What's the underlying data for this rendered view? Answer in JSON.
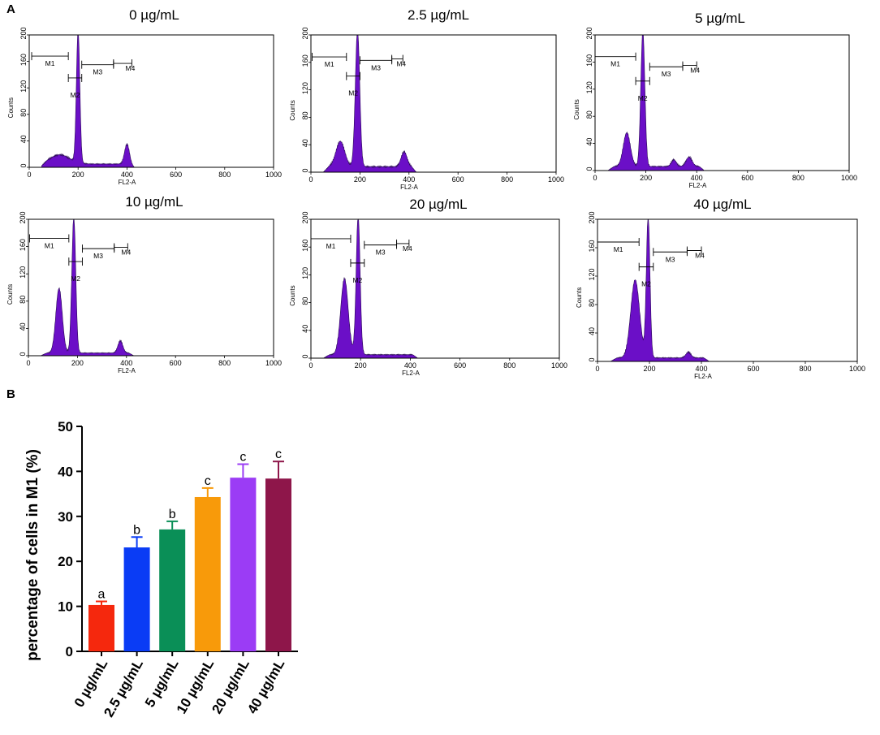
{
  "panel_a_label": "A",
  "panel_b_label": "B",
  "chart_data": [
    {
      "type": "area",
      "name": "histogram-0",
      "title": "0 µg/mL",
      "xlabel": "FL2-A",
      "ylabel": "Counts",
      "xlim": [
        0,
        1000
      ],
      "ylim": [
        0,
        200
      ],
      "x_ticks": [
        "0",
        "200",
        "400",
        "600",
        "800",
        "1000"
      ],
      "y_ticks": [
        "0",
        "40",
        "80",
        "120",
        "160",
        "200"
      ],
      "gates": [
        {
          "label": "M1",
          "x1": 10,
          "x2": 160,
          "y": 168
        },
        {
          "label": "M2",
          "x1": 160,
          "x2": 215,
          "y": 135
        },
        {
          "label": "M3",
          "x1": 215,
          "x2": 345,
          "y": 155
        },
        {
          "label": "M4",
          "x1": 345,
          "x2": 420,
          "y": 157
        }
      ],
      "peaks": [
        {
          "center": 125,
          "height": 14,
          "width": 40
        },
        {
          "center": 200,
          "height": 200,
          "width": 7
        },
        {
          "center": 400,
          "height": 30,
          "width": 10
        }
      ],
      "baseline": 5
    },
    {
      "type": "area",
      "name": "histogram-2-5",
      "title": "2.5 µg/mL",
      "xlabel": "FL2-A",
      "ylabel": "Counts",
      "xlim": [
        0,
        1000
      ],
      "ylim": [
        0,
        200
      ],
      "x_ticks": [
        "0",
        "200",
        "400",
        "600",
        "800",
        "1000"
      ],
      "y_ticks": [
        "0",
        "40",
        "80",
        "120",
        "160",
        "200"
      ],
      "gates": [
        {
          "label": "M1",
          "x1": 5,
          "x2": 145,
          "y": 168
        },
        {
          "label": "M2",
          "x1": 145,
          "x2": 200,
          "y": 140
        },
        {
          "label": "M3",
          "x1": 200,
          "x2": 330,
          "y": 163
        },
        {
          "label": "M4",
          "x1": 330,
          "x2": 375,
          "y": 165
        }
      ],
      "peaks": [
        {
          "center": 120,
          "height": 37,
          "width": 18
        },
        {
          "center": 190,
          "height": 200,
          "width": 9
        },
        {
          "center": 380,
          "height": 22,
          "width": 12
        }
      ],
      "baseline": 8
    },
    {
      "type": "area",
      "name": "histogram-5",
      "title": "5 µg/mL",
      "xlabel": "FL2-A",
      "ylabel": "Counts",
      "xlim": [
        0,
        1000
      ],
      "ylim": [
        0,
        200
      ],
      "x_ticks": [
        "0",
        "200",
        "400",
        "600",
        "800",
        "1000"
      ],
      "y_ticks": [
        "0",
        "40",
        "80",
        "120",
        "160",
        "200"
      ],
      "gates": [
        {
          "label": "M1",
          "x1": 0,
          "x2": 160,
          "y": 168
        },
        {
          "label": "M2",
          "x1": 160,
          "x2": 215,
          "y": 132
        },
        {
          "label": "M3",
          "x1": 215,
          "x2": 345,
          "y": 153
        },
        {
          "label": "M4",
          "x1": 345,
          "x2": 400,
          "y": 155
        }
      ],
      "peaks": [
        {
          "center": 125,
          "height": 50,
          "width": 14
        },
        {
          "center": 188,
          "height": 200,
          "width": 8
        },
        {
          "center": 310,
          "height": 10,
          "width": 10
        },
        {
          "center": 370,
          "height": 14,
          "width": 12
        }
      ],
      "baseline": 6
    },
    {
      "type": "area",
      "name": "histogram-10",
      "title": "10 µg/mL",
      "xlabel": "FL2-A",
      "ylabel": "Counts",
      "xlim": [
        0,
        1000
      ],
      "ylim": [
        0,
        200
      ],
      "x_ticks": [
        "0",
        "200",
        "400",
        "600",
        "800",
        "1000"
      ],
      "y_ticks": [
        "0",
        "40",
        "80",
        "120",
        "160",
        "200"
      ],
      "gates": [
        {
          "label": "M1",
          "x1": 5,
          "x2": 165,
          "y": 172
        },
        {
          "label": "M2",
          "x1": 165,
          "x2": 220,
          "y": 138
        },
        {
          "label": "M3",
          "x1": 220,
          "x2": 350,
          "y": 157
        },
        {
          "label": "M4",
          "x1": 350,
          "x2": 405,
          "y": 159
        }
      ],
      "peaks": [
        {
          "center": 125,
          "height": 95,
          "width": 13
        },
        {
          "center": 185,
          "height": 200,
          "width": 8
        },
        {
          "center": 375,
          "height": 18,
          "width": 10
        }
      ],
      "baseline": 4
    },
    {
      "type": "area",
      "name": "histogram-20",
      "title": "20 µg/mL",
      "xlabel": "FL2-A",
      "ylabel": "Counts",
      "xlim": [
        0,
        1000
      ],
      "ylim": [
        0,
        200
      ],
      "x_ticks": [
        "0",
        "200",
        "400",
        "600",
        "800",
        "1000"
      ],
      "y_ticks": [
        "0",
        "40",
        "80",
        "120",
        "160",
        "200"
      ],
      "gates": [
        {
          "label": "M1",
          "x1": 0,
          "x2": 160,
          "y": 172
        },
        {
          "label": "M2",
          "x1": 160,
          "x2": 215,
          "y": 137
        },
        {
          "label": "M3",
          "x1": 215,
          "x2": 345,
          "y": 163
        },
        {
          "label": "M4",
          "x1": 345,
          "x2": 395,
          "y": 165
        }
      ],
      "peaks": [
        {
          "center": 135,
          "height": 110,
          "width": 15
        },
        {
          "center": 190,
          "height": 200,
          "width": 8
        }
      ],
      "baseline": 5
    },
    {
      "type": "area",
      "name": "histogram-40",
      "title": "40 µg/mL",
      "xlabel": "FL2-A",
      "ylabel": "Counts",
      "xlim": [
        0,
        1000
      ],
      "ylim": [
        0,
        200
      ],
      "x_ticks": [
        "0",
        "200",
        "400",
        "600",
        "800",
        "1000"
      ],
      "y_ticks": [
        "0",
        "40",
        "80",
        "120",
        "160",
        "200"
      ],
      "gates": [
        {
          "label": "M1",
          "x1": 0,
          "x2": 160,
          "y": 168
        },
        {
          "label": "M2",
          "x1": 160,
          "x2": 215,
          "y": 133
        },
        {
          "label": "M3",
          "x1": 215,
          "x2": 345,
          "y": 154
        },
        {
          "label": "M4",
          "x1": 345,
          "x2": 400,
          "y": 156
        }
      ],
      "peaks": [
        {
          "center": 145,
          "height": 110,
          "width": 17
        },
        {
          "center": 195,
          "height": 200,
          "width": 7
        },
        {
          "center": 350,
          "height": 8,
          "width": 10
        }
      ],
      "baseline": 5
    },
    {
      "type": "bar",
      "name": "bar-chart",
      "ylabel": "percentage of cells in M1 (%)",
      "ylim": [
        0,
        50
      ],
      "y_ticks": [
        "0",
        "10",
        "20",
        "30",
        "40",
        "50"
      ],
      "categories": [
        "0 µg/mL",
        "2.5 µg/mL",
        "5 µg/mL",
        "10 µg/mL",
        "20 µg/mL",
        "40 µg/mL"
      ],
      "values": [
        10.3,
        23.1,
        27.1,
        34.3,
        38.6,
        38.4
      ],
      "errors": [
        0.8,
        2.3,
        1.8,
        2.0,
        3.0,
        3.8
      ],
      "significance": [
        "a",
        "b",
        "b",
        "c",
        "c",
        "c"
      ],
      "colors": [
        "#f5280d",
        "#0a3cf5",
        "#0a8f57",
        "#f89a0a",
        "#9b3cf5",
        "#8e164a"
      ]
    }
  ]
}
